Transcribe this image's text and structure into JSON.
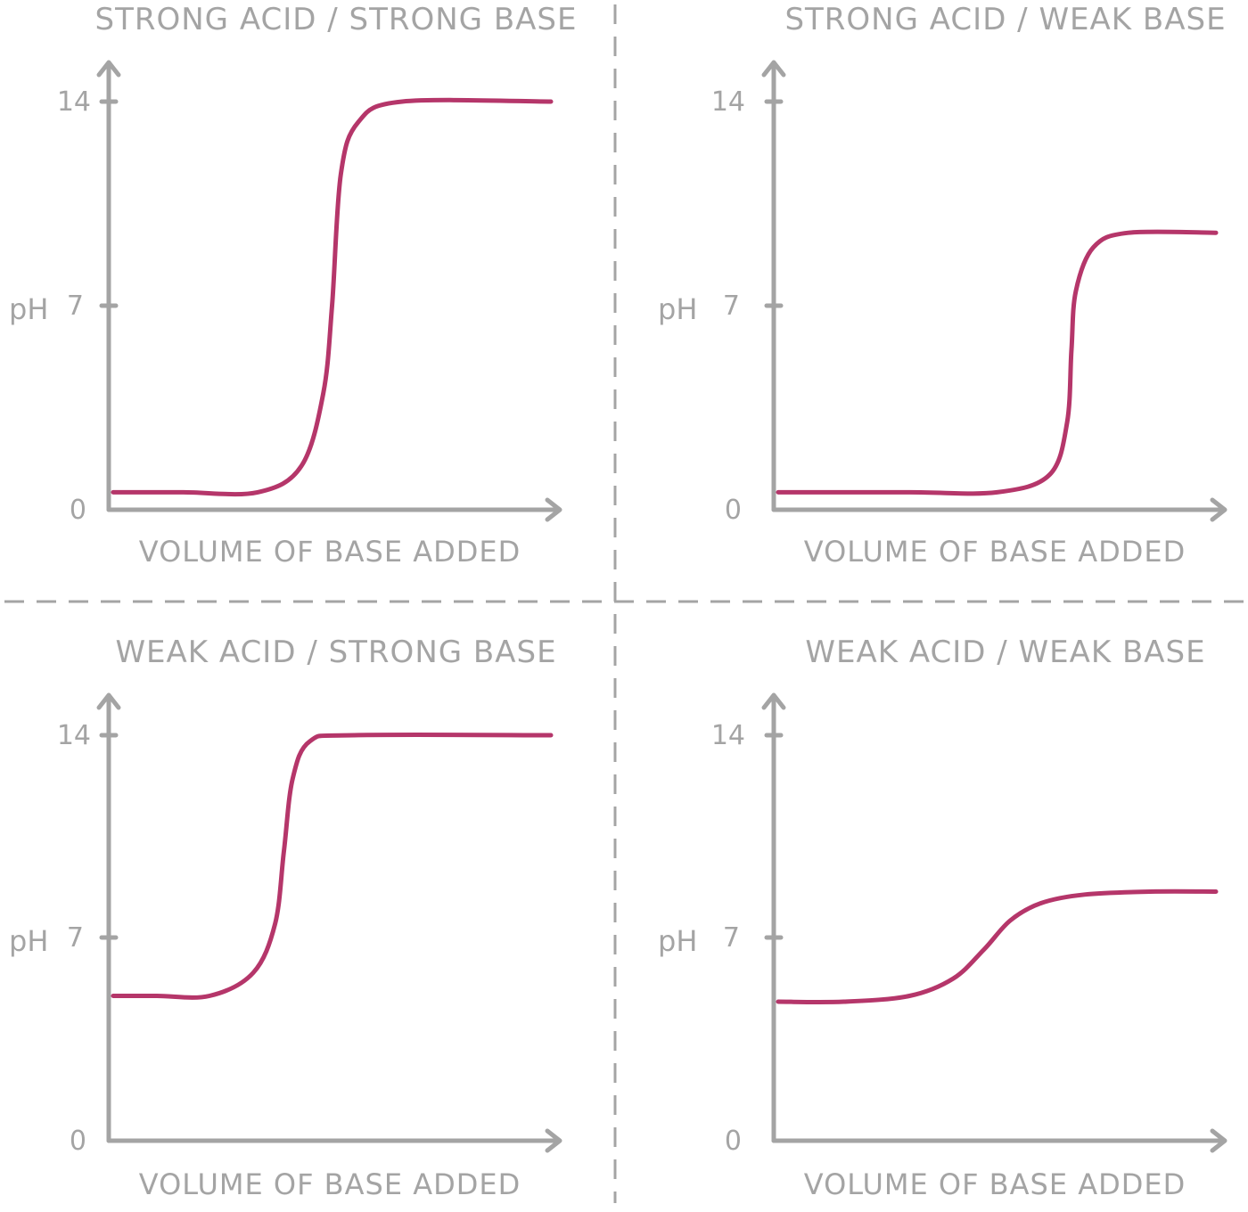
{
  "chart_data": [
    {
      "type": "line",
      "title": "STRONG ACID / STRONG BASE",
      "xlabel": "VOLUME OF BASE ADDED",
      "ylabel": "pH",
      "yticks": [
        "0",
        "7",
        "14"
      ],
      "ylim": [
        0,
        14
      ],
      "xlim": [
        0,
        1
      ],
      "grid": false,
      "series": [
        {
          "x": [
            0.0,
            0.16,
            0.33,
            0.43,
            0.48,
            0.5,
            0.52,
            0.56,
            0.66,
            1.0
          ],
          "values": [
            0.6,
            0.6,
            0.6,
            1.5,
            4.0,
            7.0,
            11.5,
            13.3,
            14.0,
            14.0
          ]
        }
      ]
    },
    {
      "type": "line",
      "title": "STRONG ACID / WEAK BASE",
      "xlabel": "VOLUME OF BASE ADDED",
      "ylabel": "pH",
      "yticks": [
        "0",
        "7",
        "14"
      ],
      "ylim": [
        0,
        14
      ],
      "xlim": [
        0,
        1
      ],
      "grid": false,
      "series": [
        {
          "x": [
            0.0,
            0.3,
            0.5,
            0.62,
            0.66,
            0.67,
            0.68,
            0.72,
            0.8,
            1.0
          ],
          "values": [
            0.6,
            0.6,
            0.6,
            1.2,
            3.0,
            5.5,
            7.5,
            9.0,
            9.5,
            9.5
          ]
        }
      ]
    },
    {
      "type": "line",
      "title": "WEAK ACID / STRONG BASE",
      "xlabel": "VOLUME OF BASE ADDED",
      "ylabel": "pH",
      "yticks": [
        "0",
        "7",
        "14"
      ],
      "ylim": [
        0,
        14
      ],
      "xlim": [
        0,
        1
      ],
      "grid": false,
      "series": [
        {
          "x": [
            0.0,
            0.1,
            0.22,
            0.32,
            0.37,
            0.39,
            0.41,
            0.45,
            0.55,
            1.0
          ],
          "values": [
            5.0,
            5.0,
            5.0,
            5.8,
            7.5,
            10.0,
            12.5,
            13.8,
            14.0,
            14.0
          ]
        }
      ]
    },
    {
      "type": "line",
      "title": "WEAK ACID / WEAK BASE",
      "xlabel": "VOLUME OF BASE ADDED",
      "ylabel": "pH",
      "yticks": [
        "0",
        "7",
        "14"
      ],
      "ylim": [
        0,
        14
      ],
      "xlim": [
        0,
        1
      ],
      "grid": false,
      "series": [
        {
          "x": [
            0.0,
            0.15,
            0.3,
            0.4,
            0.47,
            0.53,
            0.6,
            0.7,
            0.85,
            1.0
          ],
          "values": [
            4.8,
            4.8,
            5.0,
            5.6,
            6.6,
            7.6,
            8.2,
            8.5,
            8.6,
            8.6
          ]
        }
      ]
    }
  ],
  "colors": {
    "axis": "#a4a4a4",
    "curve": "#b5366a",
    "background": "#ffffff"
  }
}
